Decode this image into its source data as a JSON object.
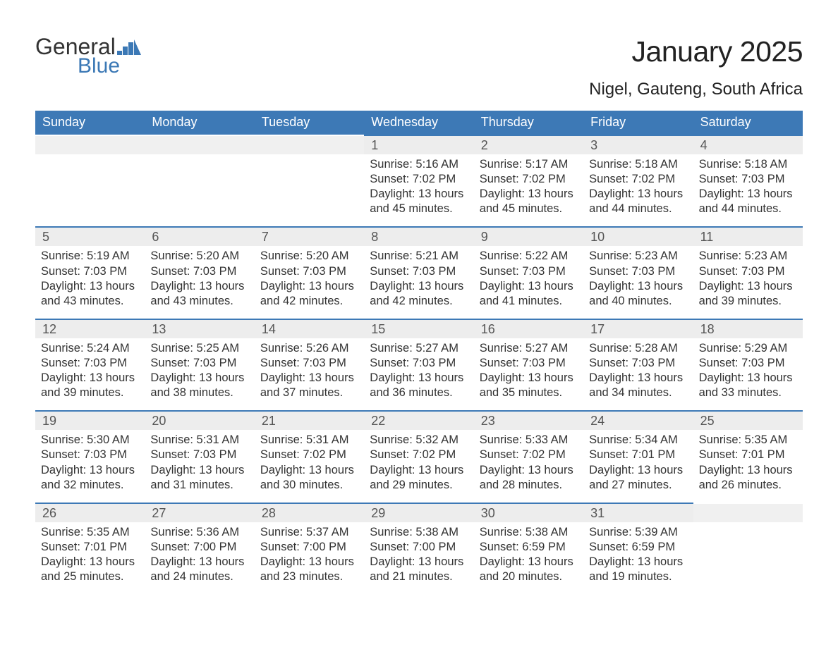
{
  "brand": {
    "logo_word1": "General",
    "logo_word2": "Blue",
    "logo_color_primary": "#333333",
    "logo_color_accent": "#3b78b5"
  },
  "header": {
    "month_title": "January 2025",
    "location": "Nigel, Gauteng, South Africa"
  },
  "styling": {
    "header_row_bg": "#3d79b6",
    "header_row_fg": "#ffffff",
    "daynum_bg": "#ededed",
    "daynum_fg": "#555555",
    "accent_border": "#3d79b6",
    "body_text_color": "#333333",
    "background": "#ffffff",
    "dow_fontsize": 18,
    "daynum_fontsize": 18,
    "body_fontsize": 16.5,
    "title_fontsize": 41,
    "location_fontsize": 24
  },
  "days_of_week": [
    "Sunday",
    "Monday",
    "Tuesday",
    "Wednesday",
    "Thursday",
    "Friday",
    "Saturday"
  ],
  "weeks": [
    [
      {
        "day": "",
        "sunrise": "",
        "sunset": "",
        "daylight": ""
      },
      {
        "day": "",
        "sunrise": "",
        "sunset": "",
        "daylight": ""
      },
      {
        "day": "",
        "sunrise": "",
        "sunset": "",
        "daylight": ""
      },
      {
        "day": "1",
        "sunrise": "5:16 AM",
        "sunset": "7:02 PM",
        "daylight": "13 hours and 45 minutes."
      },
      {
        "day": "2",
        "sunrise": "5:17 AM",
        "sunset": "7:02 PM",
        "daylight": "13 hours and 45 minutes."
      },
      {
        "day": "3",
        "sunrise": "5:18 AM",
        "sunset": "7:02 PM",
        "daylight": "13 hours and 44 minutes."
      },
      {
        "day": "4",
        "sunrise": "5:18 AM",
        "sunset": "7:03 PM",
        "daylight": "13 hours and 44 minutes."
      }
    ],
    [
      {
        "day": "5",
        "sunrise": "5:19 AM",
        "sunset": "7:03 PM",
        "daylight": "13 hours and 43 minutes."
      },
      {
        "day": "6",
        "sunrise": "5:20 AM",
        "sunset": "7:03 PM",
        "daylight": "13 hours and 43 minutes."
      },
      {
        "day": "7",
        "sunrise": "5:20 AM",
        "sunset": "7:03 PM",
        "daylight": "13 hours and 42 minutes."
      },
      {
        "day": "8",
        "sunrise": "5:21 AM",
        "sunset": "7:03 PM",
        "daylight": "13 hours and 42 minutes."
      },
      {
        "day": "9",
        "sunrise": "5:22 AM",
        "sunset": "7:03 PM",
        "daylight": "13 hours and 41 minutes."
      },
      {
        "day": "10",
        "sunrise": "5:23 AM",
        "sunset": "7:03 PM",
        "daylight": "13 hours and 40 minutes."
      },
      {
        "day": "11",
        "sunrise": "5:23 AM",
        "sunset": "7:03 PM",
        "daylight": "13 hours and 39 minutes."
      }
    ],
    [
      {
        "day": "12",
        "sunrise": "5:24 AM",
        "sunset": "7:03 PM",
        "daylight": "13 hours and 39 minutes."
      },
      {
        "day": "13",
        "sunrise": "5:25 AM",
        "sunset": "7:03 PM",
        "daylight": "13 hours and 38 minutes."
      },
      {
        "day": "14",
        "sunrise": "5:26 AM",
        "sunset": "7:03 PM",
        "daylight": "13 hours and 37 minutes."
      },
      {
        "day": "15",
        "sunrise": "5:27 AM",
        "sunset": "7:03 PM",
        "daylight": "13 hours and 36 minutes."
      },
      {
        "day": "16",
        "sunrise": "5:27 AM",
        "sunset": "7:03 PM",
        "daylight": "13 hours and 35 minutes."
      },
      {
        "day": "17",
        "sunrise": "5:28 AM",
        "sunset": "7:03 PM",
        "daylight": "13 hours and 34 minutes."
      },
      {
        "day": "18",
        "sunrise": "5:29 AM",
        "sunset": "7:03 PM",
        "daylight": "13 hours and 33 minutes."
      }
    ],
    [
      {
        "day": "19",
        "sunrise": "5:30 AM",
        "sunset": "7:03 PM",
        "daylight": "13 hours and 32 minutes."
      },
      {
        "day": "20",
        "sunrise": "5:31 AM",
        "sunset": "7:03 PM",
        "daylight": "13 hours and 31 minutes."
      },
      {
        "day": "21",
        "sunrise": "5:31 AM",
        "sunset": "7:02 PM",
        "daylight": "13 hours and 30 minutes."
      },
      {
        "day": "22",
        "sunrise": "5:32 AM",
        "sunset": "7:02 PM",
        "daylight": "13 hours and 29 minutes."
      },
      {
        "day": "23",
        "sunrise": "5:33 AM",
        "sunset": "7:02 PM",
        "daylight": "13 hours and 28 minutes."
      },
      {
        "day": "24",
        "sunrise": "5:34 AM",
        "sunset": "7:01 PM",
        "daylight": "13 hours and 27 minutes."
      },
      {
        "day": "25",
        "sunrise": "5:35 AM",
        "sunset": "7:01 PM",
        "daylight": "13 hours and 26 minutes."
      }
    ],
    [
      {
        "day": "26",
        "sunrise": "5:35 AM",
        "sunset": "7:01 PM",
        "daylight": "13 hours and 25 minutes."
      },
      {
        "day": "27",
        "sunrise": "5:36 AM",
        "sunset": "7:00 PM",
        "daylight": "13 hours and 24 minutes."
      },
      {
        "day": "28",
        "sunrise": "5:37 AM",
        "sunset": "7:00 PM",
        "daylight": "13 hours and 23 minutes."
      },
      {
        "day": "29",
        "sunrise": "5:38 AM",
        "sunset": "7:00 PM",
        "daylight": "13 hours and 21 minutes."
      },
      {
        "day": "30",
        "sunrise": "5:38 AM",
        "sunset": "6:59 PM",
        "daylight": "13 hours and 20 minutes."
      },
      {
        "day": "31",
        "sunrise": "5:39 AM",
        "sunset": "6:59 PM",
        "daylight": "13 hours and 19 minutes."
      },
      {
        "day": "",
        "sunrise": "",
        "sunset": "",
        "daylight": ""
      }
    ]
  ],
  "labels": {
    "sunrise_prefix": "Sunrise: ",
    "sunset_prefix": "Sunset: ",
    "daylight_prefix": "Daylight: "
  }
}
